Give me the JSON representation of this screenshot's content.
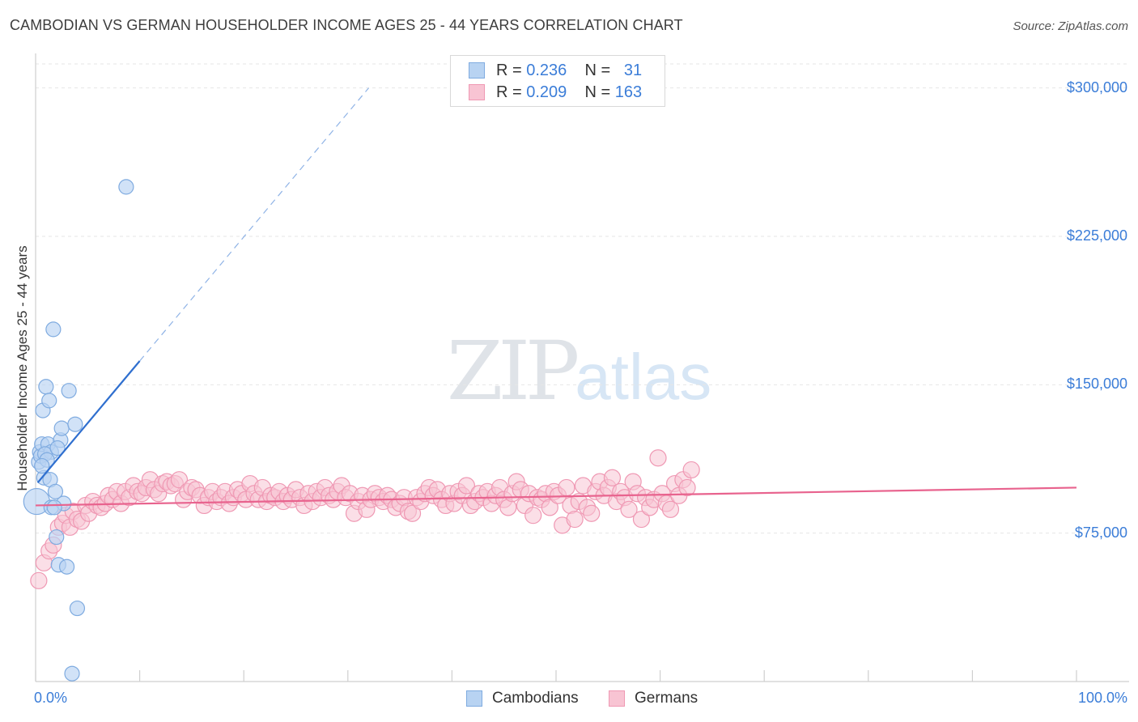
{
  "header": {
    "title": "CAMBODIAN VS GERMAN HOUSEHOLDER INCOME AGES 25 - 44 YEARS CORRELATION CHART",
    "source": "Source: ZipAtlas.com"
  },
  "watermark": {
    "zip": "ZIP",
    "atlas": "atlas"
  },
  "legend": {
    "rows": [
      {
        "r_label": "R = ",
        "r_value": "0.236",
        "n_label": "N = ",
        "n_value": "31"
      },
      {
        "r_label": "R = ",
        "r_value": "0.209",
        "n_label": "N = ",
        "n_value": "163"
      }
    ]
  },
  "colors": {
    "cambodian_fill": "#b8d3f2",
    "cambodian_stroke": "#7fabe0",
    "cambodian_line": "#2f6fcf",
    "german_fill": "#f8c4d3",
    "german_stroke": "#ef98b3",
    "german_line": "#e8638e",
    "tick_label": "#3b7dd8",
    "grid": "#e6e6e6"
  },
  "chart_data": {
    "type": "scatter",
    "title": "CAMBODIAN VS GERMAN HOUSEHOLDER INCOME AGES 25 - 44 YEARS CORRELATION CHART",
    "xlabel": "",
    "ylabel": "Householder Income Ages 25 - 44 years",
    "xlim": [
      0,
      100
    ],
    "ylim": [
      0,
      315000
    ],
    "x_tick_labels": [
      "0.0%",
      "100.0%"
    ],
    "y_ticks": [
      75000,
      150000,
      225000,
      300000
    ],
    "y_tick_labels": [
      "$75,000",
      "$150,000",
      "$225,000",
      "$300,000"
    ],
    "grid": true,
    "legend_position": "top-center",
    "series": [
      {
        "name": "Cambodians",
        "r": 0.236,
        "n": 31,
        "trend": {
          "x0": 0.2,
          "y0": 100500,
          "x1": 10,
          "y1": 162000,
          "dashed_to_x": 32,
          "dashed_to_y": 300000
        },
        "points": [
          [
            0.1,
            91000
          ],
          [
            0.3,
            111000
          ],
          [
            0.4,
            116000
          ],
          [
            0.5,
            114000
          ],
          [
            0.6,
            120000
          ],
          [
            0.8,
            103000
          ],
          [
            0.7,
            137000
          ],
          [
            1.0,
            149000
          ],
          [
            1.2,
            120000
          ],
          [
            1.3,
            142000
          ],
          [
            1.5,
            116000
          ],
          [
            1.4,
            102000
          ],
          [
            1.5,
            88000
          ],
          [
            1.7,
            178000
          ],
          [
            1.9,
            96000
          ],
          [
            2.0,
            73000
          ],
          [
            2.2,
            59000
          ],
          [
            2.4,
            122000
          ],
          [
            2.5,
            128000
          ],
          [
            2.7,
            90000
          ],
          [
            3.0,
            58000
          ],
          [
            3.2,
            147000
          ],
          [
            3.8,
            130000
          ],
          [
            4.0,
            37000
          ],
          [
            3.5,
            4000
          ],
          [
            8.7,
            250000
          ],
          [
            0.9,
            115000
          ],
          [
            1.1,
            112000
          ],
          [
            0.6,
            109000
          ],
          [
            2.1,
            118000
          ],
          [
            1.8,
            88000
          ]
        ]
      },
      {
        "name": "Germans",
        "r": 0.209,
        "n": 163,
        "trend": {
          "x0": 0,
          "y0": 89000,
          "x1": 100,
          "y1": 98000
        },
        "points": [
          [
            0.3,
            51000
          ],
          [
            0.8,
            60000
          ],
          [
            1.3,
            66000
          ],
          [
            1.7,
            69000
          ],
          [
            2.2,
            78000
          ],
          [
            2.6,
            80000
          ],
          [
            2.9,
            84000
          ],
          [
            3.3,
            78000
          ],
          [
            3.6,
            86000
          ],
          [
            4.0,
            82000
          ],
          [
            4.4,
            81000
          ],
          [
            4.8,
            89000
          ],
          [
            5.1,
            85000
          ],
          [
            5.5,
            91000
          ],
          [
            5.9,
            89000
          ],
          [
            6.3,
            88000
          ],
          [
            6.7,
            90000
          ],
          [
            7.0,
            94000
          ],
          [
            7.4,
            92000
          ],
          [
            7.8,
            96000
          ],
          [
            8.2,
            90000
          ],
          [
            8.6,
            96000
          ],
          [
            9.0,
            93000
          ],
          [
            9.4,
            99000
          ],
          [
            9.8,
            96000
          ],
          [
            10.2,
            95000
          ],
          [
            10.6,
            98000
          ],
          [
            11.0,
            102000
          ],
          [
            11.4,
            97000
          ],
          [
            11.8,
            95000
          ],
          [
            12.2,
            100000
          ],
          [
            12.6,
            101000
          ],
          [
            13.0,
            99000
          ],
          [
            13.4,
            100000
          ],
          [
            13.8,
            102000
          ],
          [
            14.2,
            92000
          ],
          [
            14.6,
            96000
          ],
          [
            15.0,
            98000
          ],
          [
            15.4,
            97000
          ],
          [
            15.8,
            94000
          ],
          [
            16.2,
            89000
          ],
          [
            16.6,
            93000
          ],
          [
            17.0,
            96000
          ],
          [
            17.4,
            91000
          ],
          [
            17.8,
            93000
          ],
          [
            18.2,
            96000
          ],
          [
            18.6,
            90000
          ],
          [
            19.0,
            93000
          ],
          [
            19.4,
            97000
          ],
          [
            19.8,
            95000
          ],
          [
            20.2,
            92000
          ],
          [
            20.6,
            100000
          ],
          [
            21.0,
            95000
          ],
          [
            21.4,
            92000
          ],
          [
            21.8,
            98000
          ],
          [
            22.2,
            91000
          ],
          [
            22.6,
            94000
          ],
          [
            23.0,
            93000
          ],
          [
            23.4,
            96000
          ],
          [
            23.8,
            91000
          ],
          [
            24.2,
            94000
          ],
          [
            24.6,
            92000
          ],
          [
            25.0,
            97000
          ],
          [
            25.4,
            93000
          ],
          [
            25.8,
            89000
          ],
          [
            26.2,
            95000
          ],
          [
            26.6,
            91000
          ],
          [
            27.0,
            96000
          ],
          [
            27.4,
            93000
          ],
          [
            27.8,
            98000
          ],
          [
            28.2,
            94000
          ],
          [
            28.6,
            92000
          ],
          [
            29.0,
            96000
          ],
          [
            29.4,
            99000
          ],
          [
            29.8,
            93000
          ],
          [
            30.2,
            95000
          ],
          [
            30.6,
            85000
          ],
          [
            31.0,
            91000
          ],
          [
            31.4,
            94000
          ],
          [
            31.8,
            87000
          ],
          [
            32.2,
            92000
          ],
          [
            32.6,
            95000
          ],
          [
            33.0,
            93000
          ],
          [
            33.4,
            91000
          ],
          [
            33.8,
            94000
          ],
          [
            34.2,
            92000
          ],
          [
            34.6,
            88000
          ],
          [
            35.0,
            90000
          ],
          [
            35.4,
            93000
          ],
          [
            35.8,
            86000
          ],
          [
            36.2,
            85000
          ],
          [
            36.6,
            93000
          ],
          [
            37.0,
            91000
          ],
          [
            37.4,
            95000
          ],
          [
            37.8,
            98000
          ],
          [
            38.2,
            94000
          ],
          [
            38.6,
            97000
          ],
          [
            39.0,
            92000
          ],
          [
            39.4,
            89000
          ],
          [
            39.8,
            95000
          ],
          [
            40.2,
            90000
          ],
          [
            40.6,
            96000
          ],
          [
            41.0,
            94000
          ],
          [
            41.4,
            99000
          ],
          [
            41.8,
            89000
          ],
          [
            42.2,
            91000
          ],
          [
            42.6,
            95000
          ],
          [
            43.0,
            93000
          ],
          [
            43.4,
            96000
          ],
          [
            43.8,
            90000
          ],
          [
            44.2,
            94000
          ],
          [
            44.6,
            98000
          ],
          [
            45.0,
            92000
          ],
          [
            45.4,
            88000
          ],
          [
            45.8,
            95000
          ],
          [
            46.2,
            101000
          ],
          [
            46.6,
            97000
          ],
          [
            47.0,
            89000
          ],
          [
            47.4,
            95000
          ],
          [
            47.8,
            84000
          ],
          [
            48.2,
            93000
          ],
          [
            48.6,
            92000
          ],
          [
            49.0,
            95000
          ],
          [
            49.4,
            88000
          ],
          [
            49.8,
            96000
          ],
          [
            50.2,
            94000
          ],
          [
            50.6,
            79000
          ],
          [
            51.0,
            98000
          ],
          [
            51.4,
            89000
          ],
          [
            51.8,
            82000
          ],
          [
            52.2,
            91000
          ],
          [
            52.6,
            99000
          ],
          [
            53.0,
            88000
          ],
          [
            53.4,
            85000
          ],
          [
            53.8,
            96000
          ],
          [
            54.2,
            101000
          ],
          [
            54.6,
            94000
          ],
          [
            55.0,
            98000
          ],
          [
            55.4,
            103000
          ],
          [
            55.8,
            91000
          ],
          [
            56.2,
            96000
          ],
          [
            56.6,
            93000
          ],
          [
            57.0,
            87000
          ],
          [
            57.4,
            101000
          ],
          [
            57.8,
            95000
          ],
          [
            58.2,
            82000
          ],
          [
            58.6,
            93000
          ],
          [
            59.0,
            88000
          ],
          [
            59.4,
            92000
          ],
          [
            59.8,
            113000
          ],
          [
            60.2,
            95000
          ],
          [
            60.6,
            90000
          ],
          [
            61.0,
            87000
          ],
          [
            61.4,
            100000
          ],
          [
            61.8,
            94000
          ],
          [
            62.2,
            102000
          ],
          [
            62.6,
            98000
          ],
          [
            63.0,
            107000
          ]
        ]
      }
    ]
  },
  "bottom_legend": {
    "items": [
      {
        "label": "Cambodians"
      },
      {
        "label": "Germans"
      }
    ]
  }
}
